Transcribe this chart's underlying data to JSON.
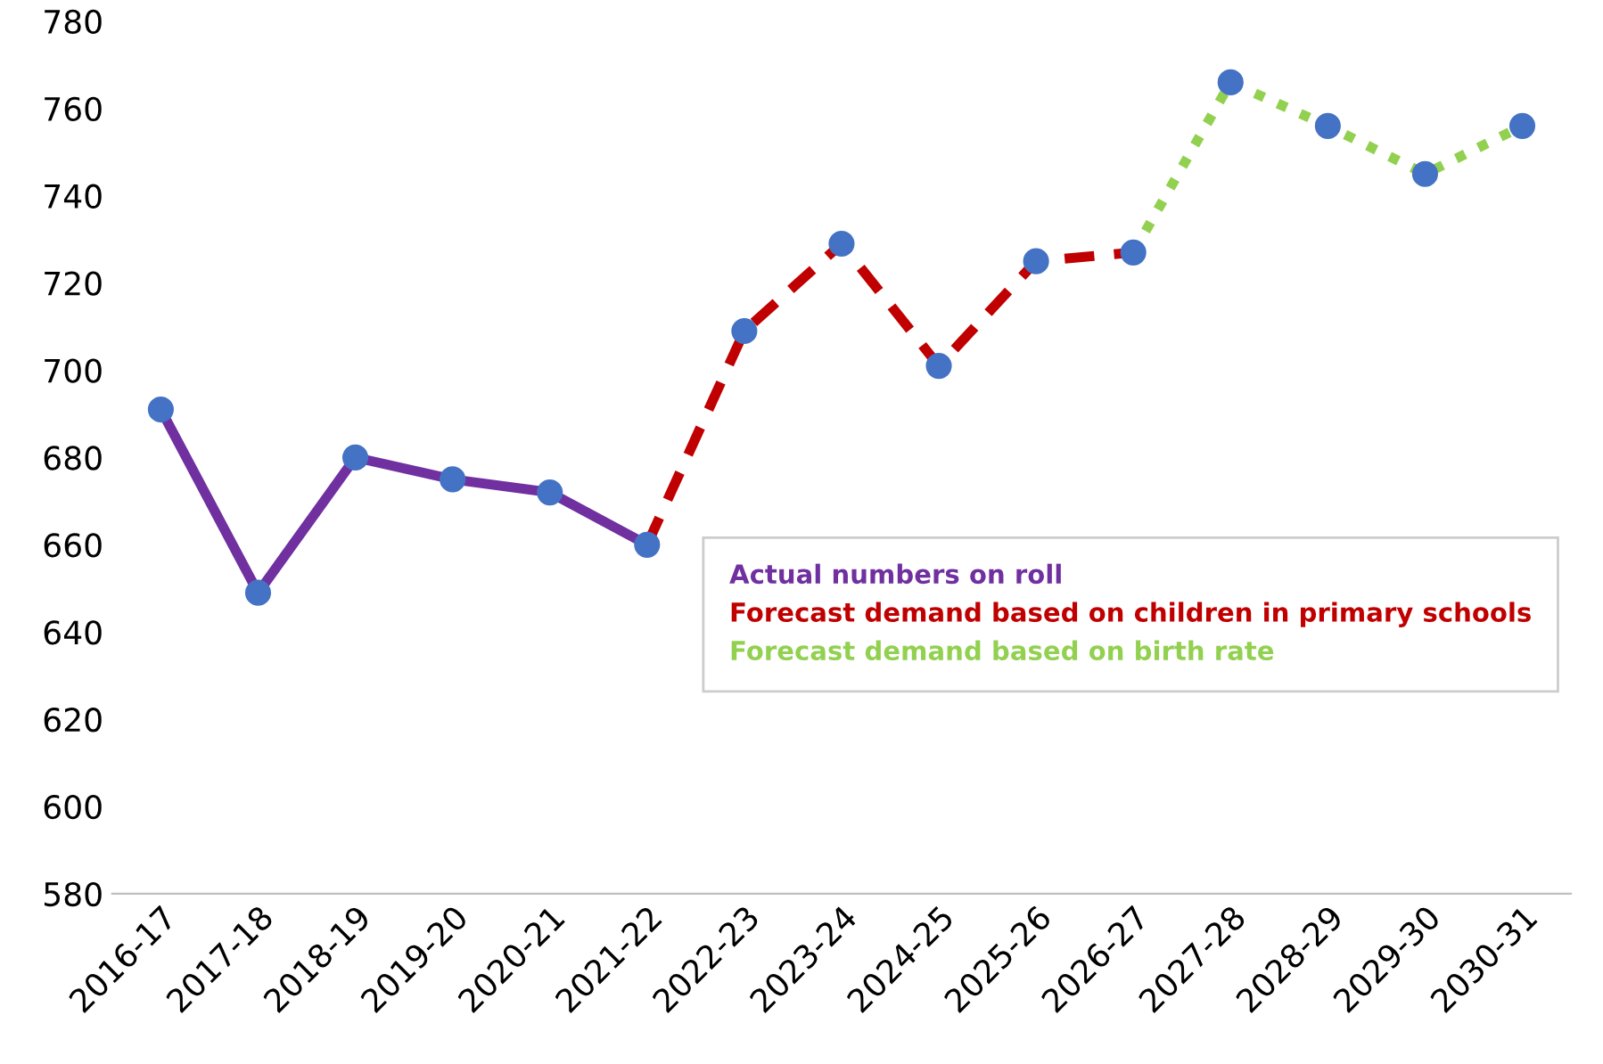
{
  "chart_data": {
    "type": "line",
    "categories": [
      "2016-17",
      "2017-18",
      "2018-19",
      "2019-20",
      "2020-21",
      "2021-22",
      "2022-23",
      "2023-24",
      "2024-25",
      "2025-26",
      "2026-27",
      "2027-28",
      "2028-29",
      "2029-30",
      "2030-31"
    ],
    "series": [
      {
        "name": "Actual numbers on roll",
        "color": "#7030a0",
        "line_style": "solid",
        "values": [
          691,
          649,
          680,
          675,
          672,
          660,
          null,
          null,
          null,
          null,
          null,
          null,
          null,
          null,
          null
        ]
      },
      {
        "name": "Forecast demand based on children in primary schools",
        "color": "#c00000",
        "line_style": "dashed",
        "values": [
          null,
          null,
          null,
          null,
          null,
          660,
          709,
          729,
          701,
          725,
          727,
          null,
          null,
          null,
          null
        ]
      },
      {
        "name": "Forecast demand based on birth rate",
        "color": "#92d050",
        "line_style": "dotted",
        "values": [
          null,
          null,
          null,
          null,
          null,
          null,
          null,
          null,
          null,
          null,
          727,
          766,
          756,
          745,
          756
        ]
      },
      {
        "type": "scatter",
        "color": "#4472c4",
        "marker": "circle",
        "values": [
          691,
          649,
          680,
          675,
          672,
          660,
          709,
          729,
          701,
          725,
          727,
          766,
          756,
          745,
          756
        ]
      }
    ],
    "ylim": [
      580,
      780
    ],
    "yticks": [
      580,
      600,
      620,
      640,
      660,
      680,
      700,
      720,
      740,
      760,
      780
    ],
    "grid": false,
    "legend": "right"
  }
}
